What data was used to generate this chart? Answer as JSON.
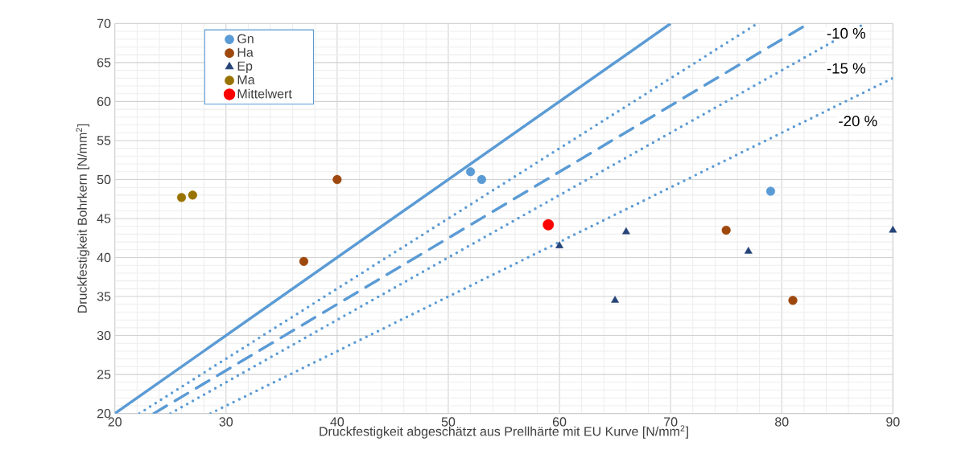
{
  "chart_data": {
    "type": "scatter",
    "xlabel": "Druckfestigkeit abgeschätzt aus Prellhärte mit EU Kurve [N/mm$^{2}$]",
    "ylabel": "Druckfestigkeit Bohrkern [N/mm$^{2}$]",
    "xlim": [
      20,
      90
    ],
    "ylim": [
      20,
      70
    ],
    "xticks": [
      20,
      30,
      40,
      50,
      60,
      70,
      80,
      90
    ],
    "yticks": [
      20,
      25,
      30,
      35,
      40,
      45,
      50,
      55,
      60,
      65,
      70
    ],
    "grid": true,
    "legend": "top left",
    "series": [
      {
        "name": "Gn",
        "color": "#5b9bd5",
        "marker": "circle",
        "x": [
          52,
          53,
          79
        ],
        "values": [
          51,
          50,
          48.5
        ]
      },
      {
        "name": "Ha",
        "color": "#9e480e",
        "marker": "circle",
        "x": [
          37,
          40,
          75,
          81
        ],
        "values": [
          39.5,
          50,
          43.5,
          34.5
        ]
      },
      {
        "name": "Ep",
        "color": "#264478",
        "marker": "triangle",
        "x": [
          60,
          66,
          65,
          77,
          90
        ],
        "values": [
          41.5,
          43.3,
          34.5,
          40.8,
          43.5
        ]
      },
      {
        "name": "Ma",
        "color": "#997300",
        "marker": "circle",
        "x": [
          26,
          27
        ],
        "values": [
          47.7,
          48
        ]
      },
      {
        "name": "Mittelwert",
        "color": "#ff0000",
        "marker": "circle",
        "x": [
          59
        ],
        "values": [
          44.2
        ]
      },
      {
        "type": "line",
        "color": "#5b9bd5",
        "line_style": "solid",
        "marker": "none",
        "x": [
          20,
          70
        ],
        "values": [
          20,
          70
        ]
      },
      {
        "type": "line",
        "color": "#5b9bd5",
        "line_style": "dotted",
        "marker": "none",
        "x": [
          22.2,
          77.8
        ],
        "values": [
          20,
          70
        ]
      },
      {
        "type": "line",
        "color": "#5b9bd5",
        "line_style": "dashed",
        "marker": "none",
        "x": [
          23.5,
          82.4
        ],
        "values": [
          20,
          70
        ]
      },
      {
        "type": "line",
        "color": "#5b9bd5",
        "line_style": "dotted",
        "marker": "none",
        "x": [
          25,
          87.5
        ],
        "values": [
          20,
          70
        ]
      },
      {
        "type": "line",
        "color": "#5b9bd5",
        "line_style": "dotted",
        "marker": "none",
        "x": [
          28.6,
          90
        ],
        "values": [
          20,
          63
        ]
      }
    ],
    "annotations": [
      "-10 %",
      "-15 %",
      "-20 %"
    ]
  }
}
